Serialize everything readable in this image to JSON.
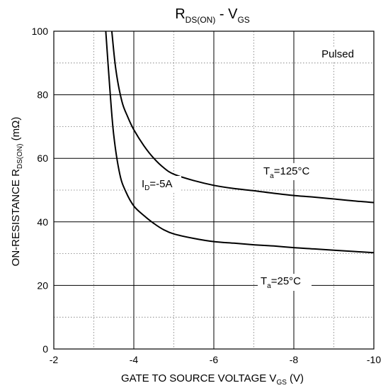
{
  "chart_data": {
    "type": "line",
    "title": {
      "main": "R",
      "sub": "DS(ON)",
      "mid": " - V",
      "sub2": "GS"
    },
    "xlabel": {
      "main": "GATE TO SOURCE VOLTAGE V",
      "sub": "GS",
      "unit": " (V)"
    },
    "ylabel": {
      "main": "ON-RESISTANCE R",
      "sub": "DS(ON)",
      "unit": " (mΩ)"
    },
    "xlim": [
      -2,
      -10
    ],
    "ylim": [
      0,
      100
    ],
    "x_ticks": [
      {
        "v": -2,
        "label": "-2"
      },
      {
        "v": -4,
        "label": "-4"
      },
      {
        "v": -6,
        "label": "-6"
      },
      {
        "v": -8,
        "label": "-8"
      },
      {
        "v": -10,
        "label": "-10"
      }
    ],
    "y_ticks": [
      {
        "v": 0,
        "label": "0"
      },
      {
        "v": 20,
        "label": "20"
      },
      {
        "v": 40,
        "label": "40"
      },
      {
        "v": 60,
        "label": "60"
      },
      {
        "v": 80,
        "label": "80"
      },
      {
        "v": 100,
        "label": "100"
      }
    ],
    "x_grid_minor": [
      -3,
      -5,
      -7,
      -9
    ],
    "y_grid_minor": [
      10,
      30,
      50,
      70,
      90
    ],
    "grid": true,
    "annotations": {
      "pulsed": "Pulsed",
      "id": {
        "main": "I",
        "sub": "D",
        "rest": "=-5A"
      }
    },
    "series": [
      {
        "label": {
          "main": "T",
          "sub": "a",
          "rest": "=125°C"
        },
        "x": [
          -3.45,
          -3.55,
          -3.7,
          -3.85,
          -4.0,
          -4.25,
          -4.5,
          -4.75,
          -5.0,
          -5.5,
          -6.0,
          -6.5,
          -7.0,
          -7.5,
          -8.0,
          -8.5,
          -9.0,
          -9.5,
          -10.0
        ],
        "y": [
          100,
          88,
          78,
          73,
          69,
          64,
          60,
          57,
          55,
          53,
          51.5,
          50.5,
          49.8,
          49,
          48.3,
          47.8,
          47.2,
          46.6,
          46.1
        ]
      },
      {
        "label": {
          "main": "T",
          "sub": "a",
          "rest": "=25°C"
        },
        "x": [
          -3.3,
          -3.4,
          -3.5,
          -3.65,
          -3.8,
          -4.0,
          -4.25,
          -4.5,
          -4.75,
          -5.0,
          -5.5,
          -6.0,
          -6.5,
          -7.0,
          -7.5,
          -8.0,
          -8.5,
          -9.0,
          -9.5,
          -10.0
        ],
        "y": [
          100,
          82,
          67,
          55,
          49.5,
          45,
          42,
          39.5,
          37.5,
          36.2,
          34.8,
          33.8,
          33.3,
          32.8,
          32.4,
          31.9,
          31.5,
          31.1,
          30.7,
          30.3
        ]
      }
    ]
  }
}
